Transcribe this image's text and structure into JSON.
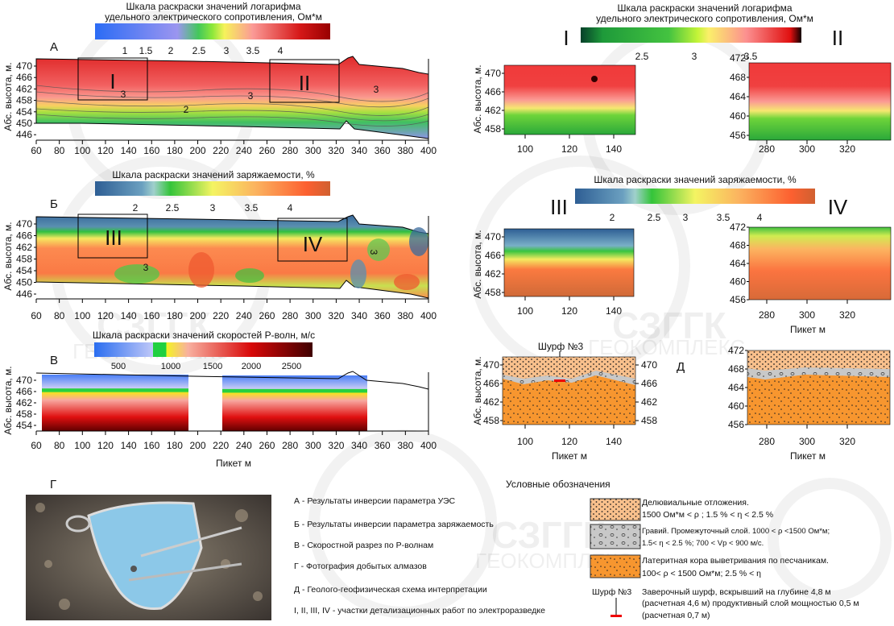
{
  "watermark": {
    "line1": "СЗГГК",
    "line2": "ГЕОКОМПЛЕКС"
  },
  "common": {
    "y_label": "Абс. высота, м.",
    "x_label": "Пикет м"
  },
  "panel_a": {
    "letter": "А",
    "scale_title_1": "Шкала раскраски значений логарифма",
    "scale_title_2": "удельного электрического сопротивления, Ом*м",
    "scale_ticks": [
      "1",
      "1.5",
      "2",
      "2.5",
      "3",
      "3.5",
      "4"
    ],
    "y_ticks": [
      "470",
      "466",
      "462",
      "458",
      "454",
      "450",
      "446"
    ],
    "x_ticks": [
      "60",
      "80",
      "100",
      "120",
      "140",
      "160",
      "180",
      "200",
      "220",
      "240",
      "260",
      "280",
      "300",
      "320",
      "340",
      "360",
      "380",
      "400"
    ],
    "contour_labels": [
      "3",
      "3",
      "3",
      "2"
    ],
    "boxes": [
      "I",
      "II"
    ]
  },
  "panel_b": {
    "letter": "Б",
    "scale_title": "Шкала раскраски значений заряжаемости, %",
    "scale_ticks": [
      "2",
      "2.5",
      "3",
      "3.5",
      "4"
    ],
    "y_ticks": [
      "470",
      "466",
      "462",
      "458",
      "454",
      "450",
      "446"
    ],
    "x_ticks": [
      "60",
      "80",
      "100",
      "120",
      "140",
      "160",
      "180",
      "200",
      "220",
      "240",
      "260",
      "280",
      "300",
      "320",
      "340",
      "360",
      "380",
      "400"
    ],
    "contour_labels": [
      "3",
      "3"
    ],
    "boxes": [
      "III",
      "IV"
    ]
  },
  "panel_v": {
    "letter": "В",
    "scale_title": "Шкала раскраски значений скоростей Р-волн, м/с",
    "scale_ticks": [
      "500",
      "1000",
      "1500",
      "2000",
      "2500"
    ],
    "y_ticks": [
      "470",
      "466",
      "462",
      "458",
      "454"
    ],
    "x_ticks": [
      "60",
      "80",
      "100",
      "120",
      "140",
      "160",
      "180",
      "200",
      "220",
      "240",
      "260",
      "280",
      "300",
      "320",
      "340",
      "360",
      "380",
      "400"
    ]
  },
  "panel_g": {
    "letter": "Г"
  },
  "detail_res": {
    "scale_title_1": "Шкала раскраски значений логарифма",
    "scale_title_2": "удельного электрического сопротивления, Ом*м",
    "scale_ticks": [
      "2.5",
      "3",
      "3.5"
    ],
    "label_left": "I",
    "label_right": "II",
    "left_y": [
      "470",
      "466",
      "462",
      "458"
    ],
    "left_x": [
      "100",
      "120",
      "140"
    ],
    "right_y": [
      "472",
      "468",
      "464",
      "460",
      "456"
    ],
    "right_x": [
      "280",
      "300",
      "320"
    ]
  },
  "detail_ip": {
    "scale_title": "Шкала раскраски значений заряжаемости, %",
    "scale_ticks": [
      "2",
      "2.5",
      "3",
      "3.5",
      "4"
    ],
    "label_left": "III",
    "label_right": "IV",
    "left_y": [
      "470",
      "466",
      "462",
      "458"
    ],
    "left_x": [
      "100",
      "120",
      "140"
    ],
    "right_y": [
      "472",
      "468",
      "464",
      "460",
      "456"
    ],
    "right_x": [
      "280",
      "300",
      "320"
    ]
  },
  "panel_d": {
    "letter": "Д",
    "pit_label": "Шурф №3",
    "left_y": [
      "470",
      "466",
      "462",
      "458"
    ],
    "left_x": [
      "100",
      "120",
      "140"
    ],
    "right_y": [
      "472",
      "468",
      "464",
      "460",
      "456"
    ],
    "right_x": [
      "280",
      "300",
      "320"
    ]
  },
  "legend": {
    "title": "Условные обозначения",
    "items": [
      "А - Результаты инверсии параметра УЭС",
      "Б - Результаты инверсии параметра заряжаемость",
      "В - Скоростной разрез по Р-волнам",
      "Г - Фотография добытых алмазов",
      "Д - Геолого-геофизическая схема интерпретации",
      "I, II, III, IV - участки детализационных работ по электроразведке"
    ],
    "layers": [
      {
        "line1": "Делювиальные отложения.",
        "line2": "1500 Ом*м < ρ ; 1.5 % < η < 2.5 %",
        "color": "#f9c08c"
      },
      {
        "line1": "Гравий. Промежуточный слой. 1000  <  ρ <1500 Ом*м;",
        "line2": "1.5< η < 2.5 %; 700 < Vp < 900 м/с.",
        "color": "#c8c8c8"
      },
      {
        "line1": "Латеритная кора выветривания по песчаникам.",
        "line2": "100< ρ < 1500 Ом*м; 2.5 % < η",
        "color": "#f7962f"
      }
    ],
    "pit": {
      "label": "Шурф №3",
      "line1": "Заверочный шурф, вскрывший на глубине 4,8 м",
      "line2": "(расчетная 4,6 м) продуктивный слой мощностью 0,5 м",
      "line3": "(расчетная 0,7 м)"
    }
  }
}
